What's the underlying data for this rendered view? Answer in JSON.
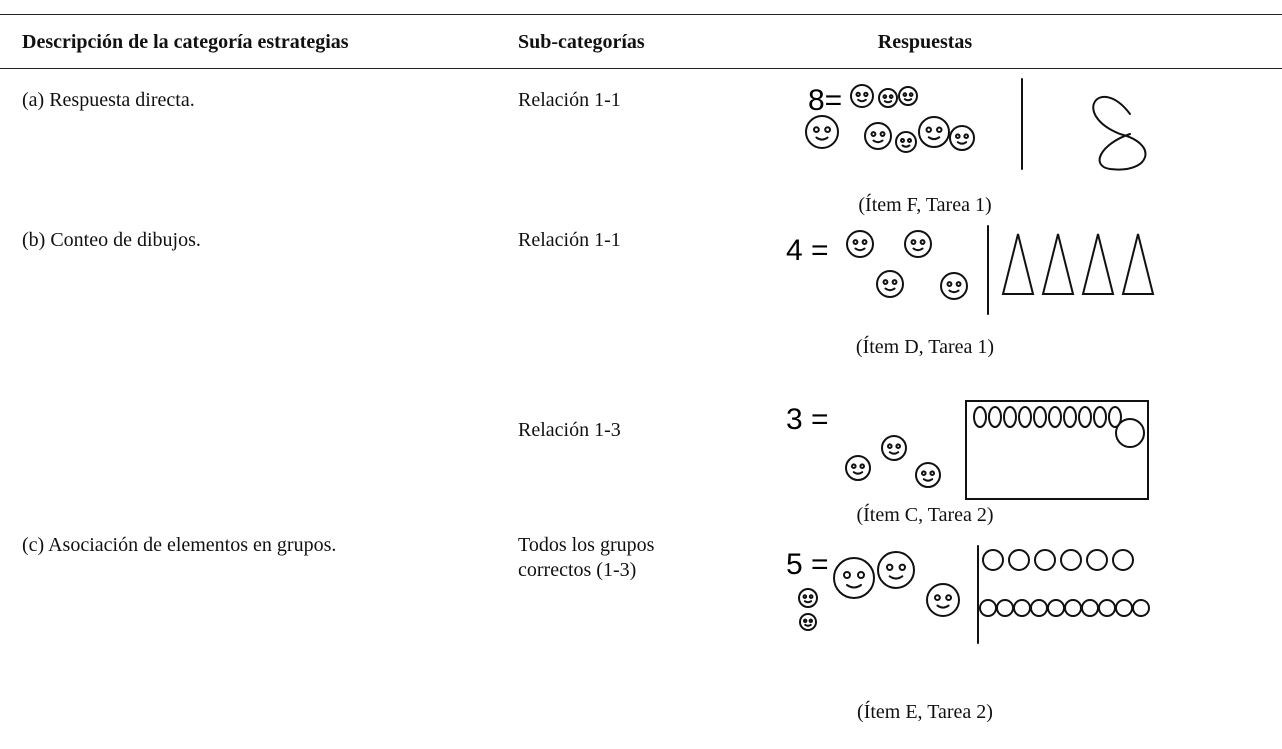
{
  "table": {
    "headers": [
      "Descripción de la categoría estrategias",
      "Sub-categorías",
      "Respuestas"
    ],
    "rows": [
      {
        "category": "(a) Respuesta directa.",
        "subcategory": [
          "Relación 1-1"
        ],
        "figure_label": "8=",
        "caption": "(Ítem F, Tarea 1)"
      },
      {
        "category": "(b) Conteo de dibujos.",
        "subcategory": [
          "Relación 1-1"
        ],
        "figure_label": "4 =",
        "caption": "(Ítem D, Tarea 1)"
      },
      {
        "subcategory": [
          "Relación 1-3"
        ],
        "figure_label": "3 =",
        "caption": "(Ítem C, Tarea 2)"
      },
      {
        "category": "(c) Asociación de elementos en grupos.",
        "subcategory": [
          "Todos los grupos",
          "correctos (1-3)"
        ],
        "figure_label": "5 =",
        "caption": "(Ítem E, Tarea 2)"
      }
    ]
  }
}
